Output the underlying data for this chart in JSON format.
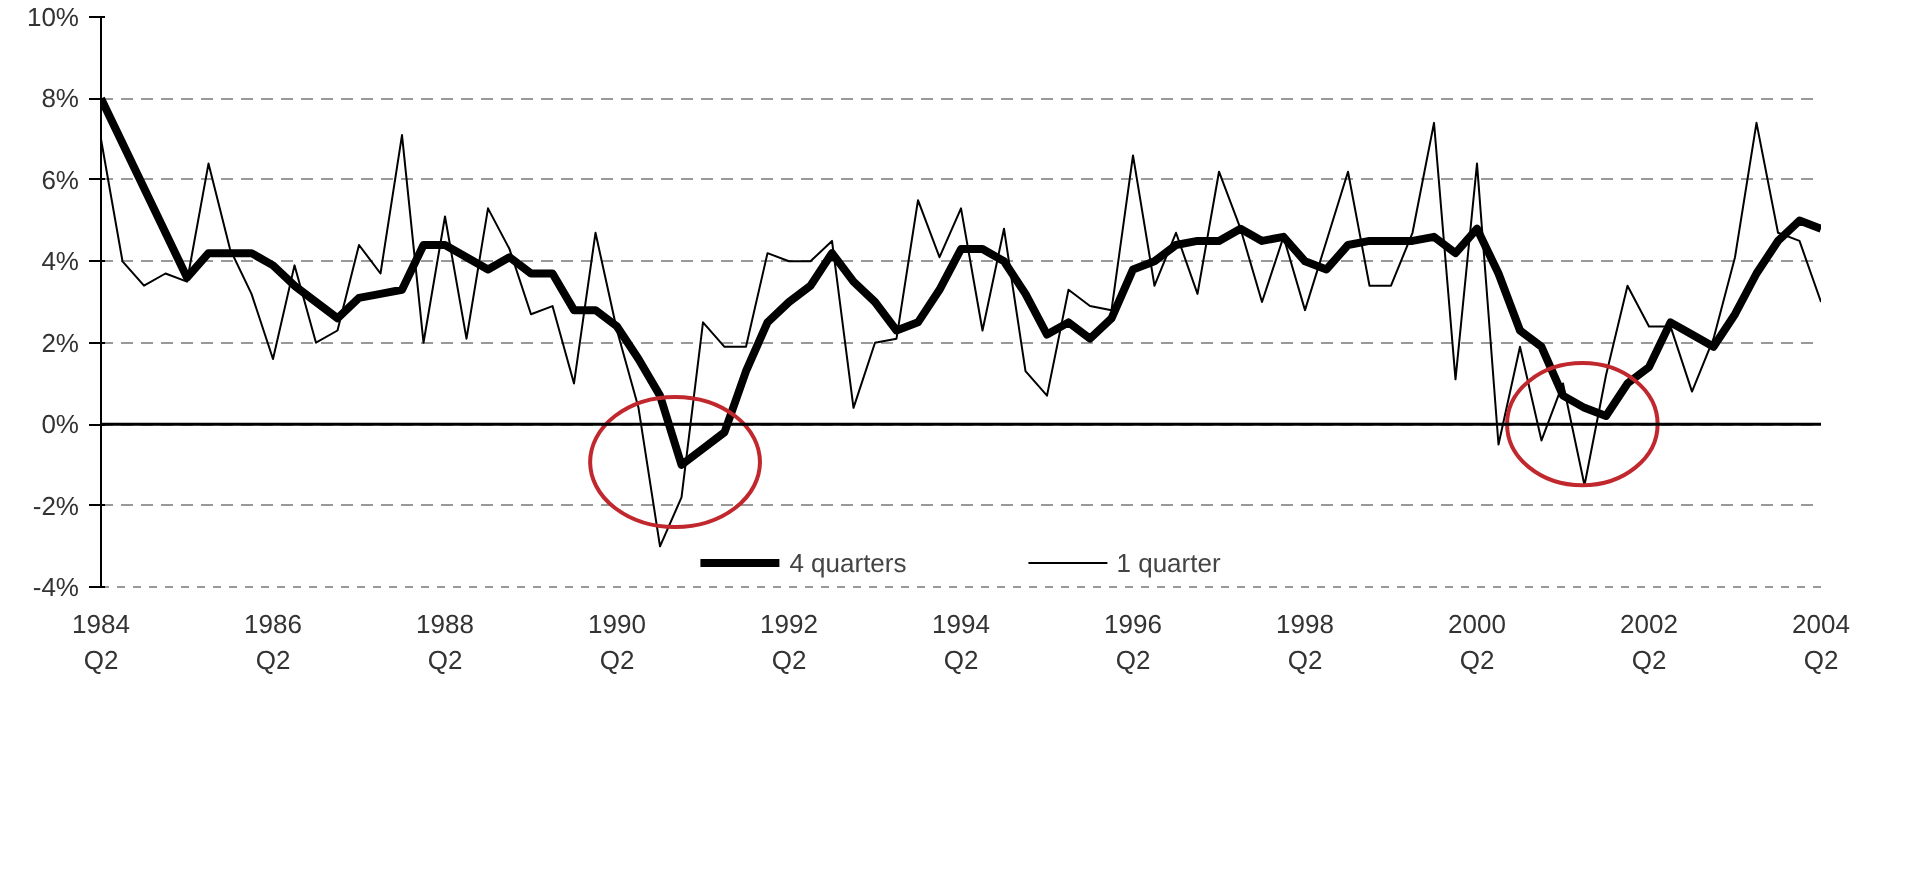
{
  "chart_data": {
    "type": "line",
    "categories": [
      "1984\nQ2",
      null,
      null,
      null,
      null,
      null,
      null,
      null,
      "1986\nQ2",
      null,
      null,
      null,
      null,
      null,
      null,
      null,
      "1988\nQ2",
      null,
      null,
      null,
      null,
      null,
      null,
      null,
      "1990\nQ2",
      null,
      null,
      null,
      null,
      null,
      null,
      null,
      "1992\nQ2",
      null,
      null,
      null,
      null,
      null,
      null,
      null,
      "1994\nQ2",
      null,
      null,
      null,
      null,
      null,
      null,
      null,
      "1996\nQ2",
      null,
      null,
      null,
      null,
      null,
      null,
      null,
      "1998\nQ2",
      null,
      null,
      null,
      null,
      null,
      null,
      null,
      "2000\nQ2",
      null,
      null,
      null,
      null,
      null,
      null,
      null,
      "2002\nQ2",
      null,
      null,
      null,
      null,
      null,
      null,
      null,
      "2004\nQ2"
    ],
    "series": [
      {
        "name": "4 quarters",
        "color": "#000000",
        "values": [
          8.0,
          6.9,
          5.8,
          4.7,
          3.6,
          4.2,
          4.2,
          4.2,
          3.9,
          3.4,
          3.0,
          2.6,
          3.1,
          3.2,
          3.3,
          4.4,
          4.4,
          4.1,
          3.8,
          4.1,
          3.7,
          3.7,
          2.8,
          2.8,
          2.4,
          1.6,
          0.7,
          -1.0,
          -0.6,
          -0.2,
          1.3,
          2.5,
          3.0,
          3.4,
          4.2,
          3.5,
          3.0,
          2.3,
          2.5,
          3.3,
          4.3,
          4.3,
          4.0,
          3.2,
          2.2,
          2.5,
          2.1,
          2.6,
          3.8,
          4.0,
          4.4,
          4.5,
          4.5,
          4.8,
          4.5,
          4.6,
          4.0,
          3.8,
          4.4,
          4.5,
          4.5,
          4.5,
          4.6,
          4.2,
          4.8,
          3.7,
          2.3,
          1.9,
          0.7,
          0.4,
          0.2,
          1.0,
          1.4,
          2.5,
          2.2,
          1.9,
          2.7,
          3.7,
          4.5,
          5.0,
          4.8
        ]
      },
      {
        "name": "1 quarter",
        "color": "#000000",
        "values": [
          7.0,
          4.0,
          3.4,
          3.7,
          3.5,
          6.4,
          4.3,
          3.2,
          1.6,
          3.9,
          2.0,
          2.3,
          4.4,
          3.7,
          7.1,
          2.0,
          5.1,
          2.1,
          5.3,
          4.3,
          2.7,
          2.9,
          1.0,
          4.7,
          2.3,
          0.4,
          -3.0,
          -1.8,
          2.5,
          1.9,
          1.9,
          4.2,
          4.0,
          4.0,
          4.5,
          0.4,
          2.0,
          2.1,
          5.5,
          4.1,
          5.3,
          2.3,
          4.8,
          1.3,
          0.7,
          3.3,
          2.9,
          2.8,
          6.6,
          3.4,
          4.7,
          3.2,
          6.2,
          4.8,
          3.0,
          4.6,
          2.8,
          4.5,
          6.2,
          3.4,
          3.4,
          4.7,
          7.4,
          1.1,
          6.4,
          -0.5,
          1.9,
          -0.4,
          1.0,
          -1.5,
          1.2,
          3.4,
          2.4,
          2.4,
          0.8,
          2.1,
          4.1,
          7.4,
          4.7,
          4.5,
          3.0
        ]
      }
    ],
    "ylim": [
      -4,
      10
    ],
    "yticks": [
      {
        "value": -4,
        "label": "-4%"
      },
      {
        "value": -2,
        "label": "-2%"
      },
      {
        "value": 0,
        "label": "0%"
      },
      {
        "value": 2,
        "label": "2%"
      },
      {
        "value": 4,
        "label": "4%"
      },
      {
        "value": 6,
        "label": "6%"
      },
      {
        "value": 8,
        "label": "8%"
      },
      {
        "value": 10,
        "label": "10%"
      }
    ],
    "ref_lines": [
      {
        "axis": "y",
        "value": 0,
        "color": "#000000"
      }
    ],
    "grid": "y",
    "legend": "bottom",
    "line_style": "solid",
    "marker": "none"
  }
}
